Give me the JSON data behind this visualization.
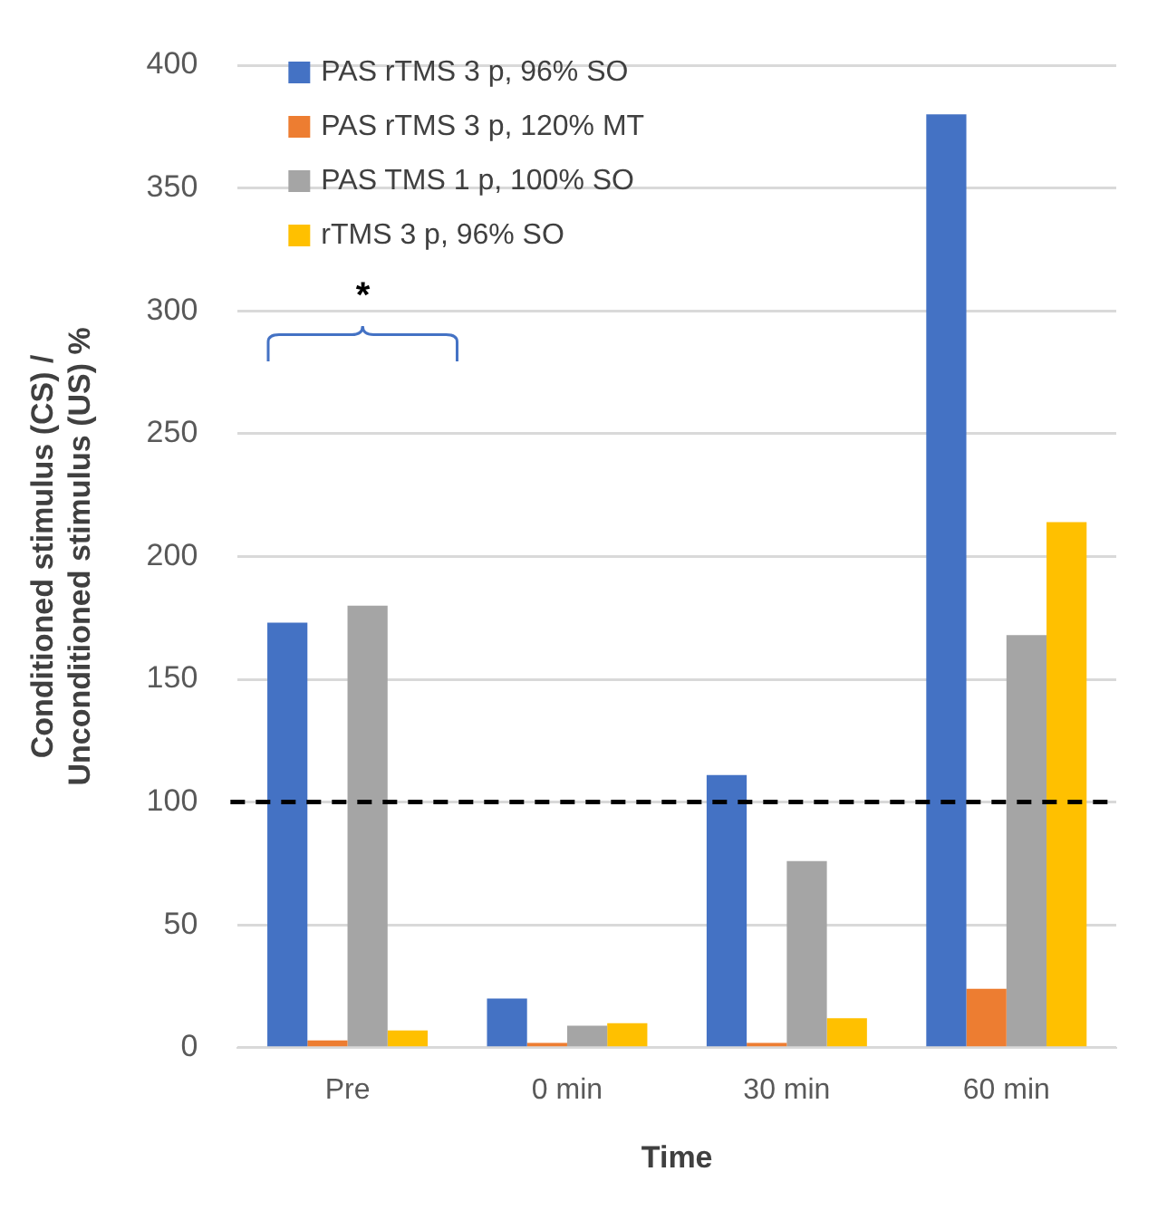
{
  "chart_data": {
    "type": "bar",
    "xlabel": "Time",
    "ylabel": "Conditioned stimulus (CS) / Unconditioned stimulus (US) %",
    "categories": [
      "Pre",
      "0 min",
      "30 min",
      "60 min"
    ],
    "series": [
      {
        "name": "PAS rTMS 3 p, 96% SO",
        "color": "#4472c4",
        "values": [
          173,
          20,
          111,
          380
        ]
      },
      {
        "name": "PAS rTMS 3 p, 120% MT",
        "color": "#ed7d31",
        "values": [
          3,
          2,
          2,
          24
        ]
      },
      {
        "name": "PAS TMS 1 p, 100% SO",
        "color": "#a5a5a5",
        "values": [
          180,
          9,
          76,
          168
        ]
      },
      {
        "name": "rTMS 3 p, 96% SO",
        "color": "#ffc000",
        "values": [
          7,
          10,
          12,
          214
        ]
      }
    ],
    "ylim": [
      0,
      400
    ],
    "yticks": [
      0,
      50,
      100,
      150,
      200,
      250,
      300,
      350,
      400
    ],
    "grid": "y",
    "legend": "top left",
    "ref_lines": [
      {
        "axis": "y",
        "value": 100,
        "color": "#000000",
        "line_style": "dashed"
      }
    ],
    "annotations": [
      "*"
    ]
  }
}
